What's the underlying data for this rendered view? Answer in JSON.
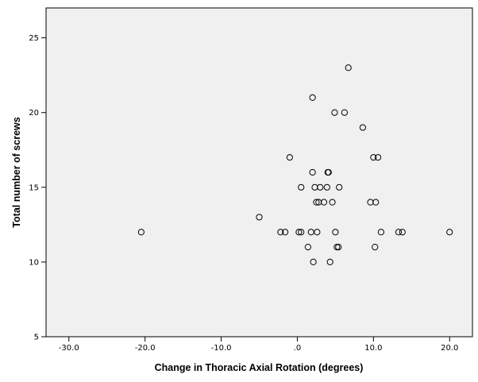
{
  "chart_data": {
    "type": "scatter",
    "xlabel": "Change in Thoracic Axial Rotation (degrees)",
    "ylabel": "Total number of screws",
    "xlim": [
      -33.0,
      23.0
    ],
    "ylim": [
      5,
      27
    ],
    "x_ticks": [
      -30.0,
      -20.0,
      -10.0,
      0.0,
      10.0,
      20.0
    ],
    "x_tick_labels": [
      "-30.0",
      "-20.0",
      "-10.0",
      ".0",
      "10.0",
      "20.0"
    ],
    "y_ticks": [
      5,
      10,
      15,
      20,
      25
    ],
    "y_tick_labels": [
      "5",
      "10",
      "15",
      "20",
      "25"
    ],
    "grid": false,
    "colors": {
      "plot_background": "#f0f0f0",
      "marker_stroke": "#000000",
      "axis": "#000000"
    },
    "series": [
      {
        "marker": "open-circle",
        "points": [
          {
            "x": -20.5,
            "y": 12
          },
          {
            "x": -5.0,
            "y": 13
          },
          {
            "x": -2.2,
            "y": 12
          },
          {
            "x": -1.6,
            "y": 12
          },
          {
            "x": -1.0,
            "y": 17
          },
          {
            "x": 0.2,
            "y": 12
          },
          {
            "x": 0.5,
            "y": 12
          },
          {
            "x": 0.5,
            "y": 15
          },
          {
            "x": 1.4,
            "y": 11
          },
          {
            "x": 1.8,
            "y": 12
          },
          {
            "x": 2.0,
            "y": 21
          },
          {
            "x": 2.0,
            "y": 16
          },
          {
            "x": 2.1,
            "y": 10
          },
          {
            "x": 2.3,
            "y": 15
          },
          {
            "x": 2.5,
            "y": 14
          },
          {
            "x": 2.6,
            "y": 12
          },
          {
            "x": 2.8,
            "y": 14
          },
          {
            "x": 3.0,
            "y": 15
          },
          {
            "x": 3.5,
            "y": 14
          },
          {
            "x": 3.9,
            "y": 15
          },
          {
            "x": 4.0,
            "y": 16
          },
          {
            "x": 4.1,
            "y": 16
          },
          {
            "x": 4.3,
            "y": 10
          },
          {
            "x": 4.6,
            "y": 14
          },
          {
            "x": 4.9,
            "y": 20
          },
          {
            "x": 5.0,
            "y": 12
          },
          {
            "x": 5.2,
            "y": 11
          },
          {
            "x": 5.4,
            "y": 11
          },
          {
            "x": 5.5,
            "y": 15
          },
          {
            "x": 6.2,
            "y": 20
          },
          {
            "x": 6.7,
            "y": 23
          },
          {
            "x": 8.6,
            "y": 19
          },
          {
            "x": 9.6,
            "y": 14
          },
          {
            "x": 10.0,
            "y": 17
          },
          {
            "x": 10.2,
            "y": 11
          },
          {
            "x": 10.3,
            "y": 14
          },
          {
            "x": 10.6,
            "y": 17
          },
          {
            "x": 11.0,
            "y": 12
          },
          {
            "x": 13.3,
            "y": 12
          },
          {
            "x": 13.8,
            "y": 12
          },
          {
            "x": 20.0,
            "y": 12
          }
        ]
      }
    ]
  }
}
